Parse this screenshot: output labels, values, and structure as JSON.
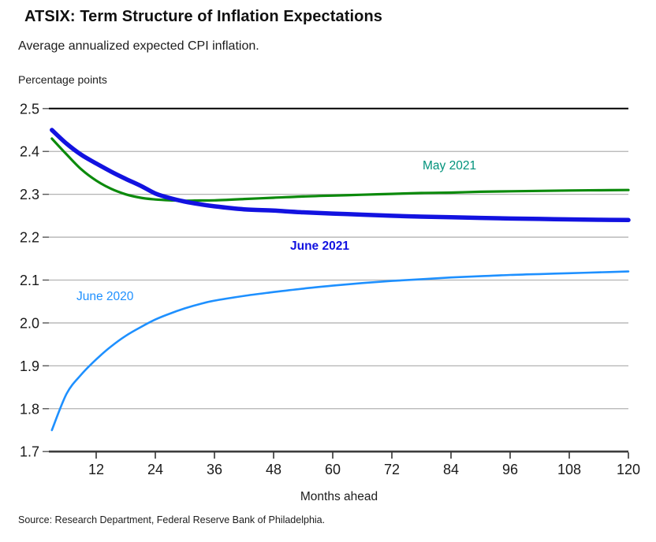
{
  "header": {
    "title": "ATSIX: Term Structure of Inflation Expectations",
    "subtitle": "Average annualized expected CPI inflation."
  },
  "source": "Source: Research Department, Federal Reserve Bank of Philadelphia.",
  "chart_data": {
    "type": "line",
    "title": "ATSIX: Term Structure of Inflation Expectations",
    "subtitle": "Average annualized expected CPI inflation.",
    "y_axis_label": "Percentage points",
    "xlabel": "Months ahead",
    "ylabel": "Percentage points",
    "ylim": [
      1.7,
      2.5
    ],
    "xlim": [
      0,
      120
    ],
    "yticks": [
      2.5,
      2.4,
      2.3,
      2.2,
      2.1,
      2.0,
      1.9,
      1.8,
      1.7
    ],
    "xticks": [
      12,
      24,
      36,
      48,
      60,
      72,
      84,
      96,
      108,
      120
    ],
    "grid": "horizontal",
    "legend_position": "inline-annotations",
    "axis_color": "#3d3d3d",
    "top_rule_color": "#000000",
    "gridline_color": "#b3b3b3",
    "x": [
      3,
      6,
      9,
      12,
      15,
      18,
      21,
      24,
      27,
      30,
      33,
      36,
      42,
      48,
      54,
      60,
      66,
      72,
      78,
      84,
      90,
      96,
      102,
      108,
      114,
      120
    ],
    "series": [
      {
        "name": "June 2020",
        "color": "#1e90ff",
        "label_color": "#1e90ff",
        "label_bold": false,
        "line_width": 2.6,
        "values": [
          1.75,
          1.835,
          1.88,
          1.915,
          1.945,
          1.97,
          1.99,
          2.008,
          2.022,
          2.034,
          2.044,
          2.052,
          2.063,
          2.072,
          2.08,
          2.087,
          2.093,
          2.098,
          2.102,
          2.106,
          2.109,
          2.112,
          2.114,
          2.116,
          2.118,
          2.12
        ]
      },
      {
        "name": "May 2021",
        "color": "#0c8a0c",
        "label_color": "#00927b",
        "label_bold": false,
        "line_width": 3.2,
        "values": [
          2.43,
          2.393,
          2.358,
          2.332,
          2.313,
          2.3,
          2.292,
          2.288,
          2.286,
          2.285,
          2.2855,
          2.286,
          2.289,
          2.292,
          2.295,
          2.297,
          2.299,
          2.301,
          2.303,
          2.304,
          2.306,
          2.307,
          2.308,
          2.309,
          2.3095,
          2.31
        ]
      },
      {
        "name": "June 2021",
        "color": "#1212e0",
        "label_color": "#1212e0",
        "label_bold": true,
        "line_width": 5.5,
        "values": [
          2.45,
          2.418,
          2.392,
          2.372,
          2.353,
          2.336,
          2.32,
          2.302,
          2.291,
          2.283,
          2.277,
          2.272,
          2.265,
          2.262,
          2.258,
          2.255,
          2.2525,
          2.25,
          2.248,
          2.2465,
          2.245,
          2.2435,
          2.2425,
          2.2415,
          2.2405,
          2.24
        ]
      }
    ]
  }
}
